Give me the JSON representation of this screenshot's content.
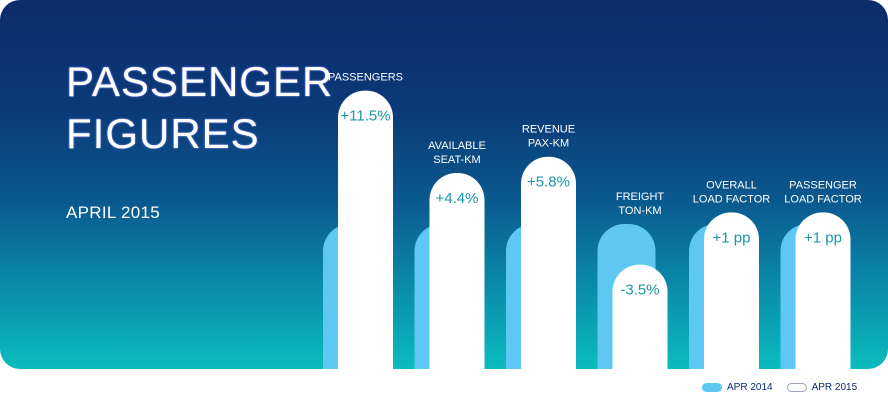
{
  "title_line1": "PASSENGER",
  "title_line2": "FIGURES",
  "period": "APRIL 2015",
  "colors": {
    "bar_2014": "#5fc8f2",
    "bar_2015": "#ffffff",
    "category_label": "#ffffff",
    "value_label": "#1b96a8"
  },
  "chart_data": {
    "type": "bar",
    "title": "PASSENGER FIGURES",
    "subtitle": "APRIL 2015",
    "categories": [
      {
        "line1": "PASSENGERS",
        "line2": ""
      },
      {
        "line1": "AVAILABLE",
        "line2": "SEAT-KM"
      },
      {
        "line1": "REVENUE",
        "line2": "PAX-KM"
      },
      {
        "line1": "FREIGHT",
        "line2": "TON-KM"
      },
      {
        "line1": "OVERALL",
        "line2": "LOAD FACTOR"
      },
      {
        "line1": "PASSENGER",
        "line2": "LOAD FACTOR"
      }
    ],
    "series": [
      {
        "name": "APR 2014",
        "values": [
          100,
          100,
          100,
          100,
          100,
          100
        ]
      },
      {
        "name": "APR 2015",
        "values": [
          111.5,
          104.4,
          105.8,
          96.5,
          101,
          101
        ]
      }
    ],
    "data_labels": [
      "+11.5%",
      "+4.4%",
      "+5.8%",
      "-3.5%",
      "+1 pp",
      "+1 pp"
    ],
    "legend": [
      "APR 2014",
      "APR 2015"
    ],
    "legend_position": "bottom-right",
    "xlabel": "",
    "ylabel": "",
    "grid": false
  }
}
